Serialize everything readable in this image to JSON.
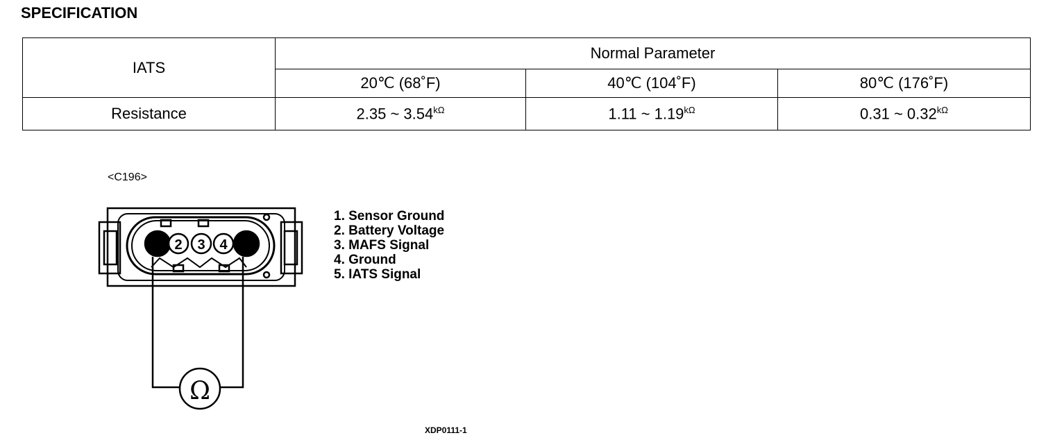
{
  "title": "SPECIFICATION",
  "table": {
    "row_header": "IATS",
    "group_header": "Normal Parameter",
    "columns": [
      "20℃ (68˚F)",
      "40℃ (104˚F)",
      "80℃ (176˚F)"
    ],
    "row_label": "Resistance",
    "values": [
      "2.35 ~ 3.54",
      "1.11 ~ 1.19",
      "0.31 ~ 0.32"
    ],
    "unit": "kΩ"
  },
  "diagram": {
    "connector": "<C196>",
    "pins": [
      "2",
      "3",
      "4"
    ],
    "meter_symbol": "Ω",
    "legend": [
      "1. Sensor Ground",
      "2. Battery Voltage",
      "3. MAFS Signal",
      "4. Ground",
      "5. IATS Signal"
    ],
    "code": "XDP0111-1"
  }
}
